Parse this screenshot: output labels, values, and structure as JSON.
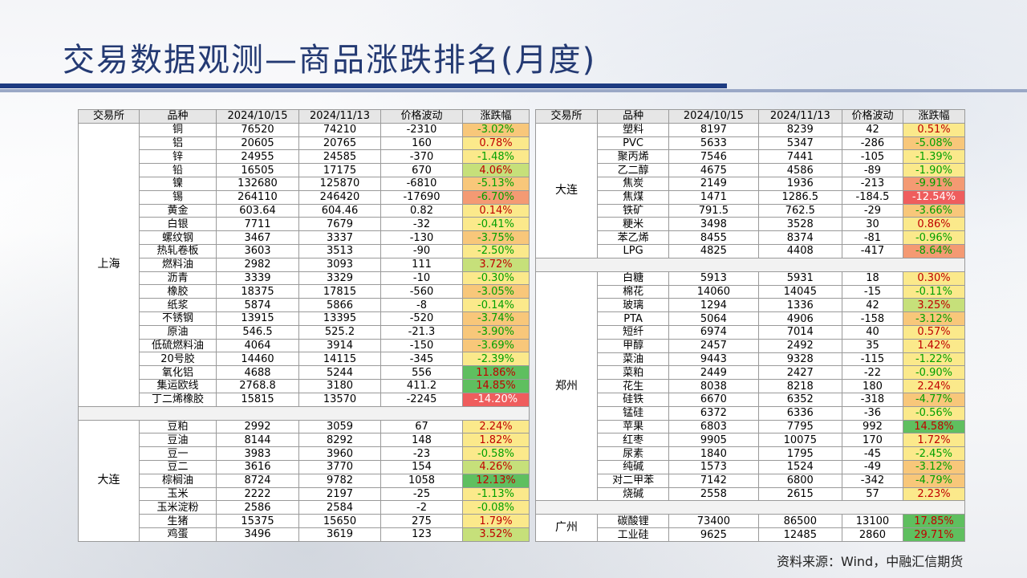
{
  "title": "交易数据观测—商品涨跌排名(月度)",
  "source": "资料来源：Wind，中融汇信期货",
  "headers": [
    "交易所",
    "品种",
    "2024/10/15",
    "2024/11/13",
    "价格波动",
    "涨跌幅"
  ],
  "left_groups": [
    {
      "exchange": "上海",
      "rows": [
        [
          "铜",
          "76520",
          "74210",
          "-2310",
          "-3.02%"
        ],
        [
          "铝",
          "20605",
          "20765",
          "160",
          "0.78%"
        ],
        [
          "锌",
          "24955",
          "24585",
          "-370",
          "-1.48%"
        ],
        [
          "铅",
          "16505",
          "17175",
          "670",
          "4.06%"
        ],
        [
          "镍",
          "132680",
          "125870",
          "-6810",
          "-5.13%"
        ],
        [
          "锡",
          "264110",
          "246420",
          "-17690",
          "-6.70%"
        ],
        [
          "黄金",
          "603.64",
          "604.46",
          "0.82",
          "0.14%"
        ],
        [
          "白银",
          "7711",
          "7679",
          "-32",
          "-0.41%"
        ],
        [
          "螺纹钢",
          "3467",
          "3337",
          "-130",
          "-3.75%"
        ],
        [
          "热轧卷板",
          "3603",
          "3513",
          "-90",
          "-2.50%"
        ],
        [
          "燃料油",
          "2982",
          "3093",
          "111",
          "3.72%"
        ],
        [
          "沥青",
          "3339",
          "3329",
          "-10",
          "-0.30%"
        ],
        [
          "橡胶",
          "18375",
          "17815",
          "-560",
          "-3.05%"
        ],
        [
          "纸浆",
          "5874",
          "5866",
          "-8",
          "-0.14%"
        ],
        [
          "不锈钢",
          "13915",
          "13395",
          "-520",
          "-3.74%"
        ],
        [
          "原油",
          "546.5",
          "525.2",
          "-21.3",
          "-3.90%"
        ],
        [
          "低硫燃料油",
          "4064",
          "3914",
          "-150",
          "-3.69%"
        ],
        [
          "20号胶",
          "14460",
          "14115",
          "-345",
          "-2.39%"
        ],
        [
          "氧化铝",
          "4688",
          "5244",
          "556",
          "11.86%"
        ],
        [
          "集运欧线",
          "2768.8",
          "3180",
          "411.2",
          "14.85%"
        ],
        [
          "丁二烯橡胶",
          "15815",
          "13570",
          "-2245",
          "-14.20%"
        ]
      ]
    },
    {
      "exchange": "大连",
      "rows": [
        [
          "豆粕",
          "2992",
          "3059",
          "67",
          "2.24%"
        ],
        [
          "豆油",
          "8144",
          "8292",
          "148",
          "1.82%"
        ],
        [
          "豆一",
          "3983",
          "3960",
          "-23",
          "-0.58%"
        ],
        [
          "豆二",
          "3616",
          "3770",
          "154",
          "4.26%"
        ],
        [
          "棕榈油",
          "8724",
          "9782",
          "1058",
          "12.13%"
        ],
        [
          "玉米",
          "2222",
          "2197",
          "-25",
          "-1.13%"
        ],
        [
          "玉米淀粉",
          "2586",
          "2584",
          "-2",
          "-0.08%"
        ],
        [
          "生猪",
          "15375",
          "15650",
          "275",
          "1.79%"
        ],
        [
          "鸡蛋",
          "3496",
          "3619",
          "123",
          "3.52%"
        ]
      ]
    }
  ],
  "right_groups": [
    {
      "exchange": "大连",
      "rows": [
        [
          "塑料",
          "8197",
          "8239",
          "42",
          "0.51%"
        ],
        [
          "PVC",
          "5633",
          "5347",
          "-286",
          "-5.08%"
        ],
        [
          "聚丙烯",
          "7546",
          "7441",
          "-105",
          "-1.39%"
        ],
        [
          "乙二醇",
          "4675",
          "4586",
          "-89",
          "-1.90%"
        ],
        [
          "焦炭",
          "2149",
          "1936",
          "-213",
          "-9.91%"
        ],
        [
          "焦煤",
          "1471",
          "1286.5",
          "-184.5",
          "-12.54%"
        ],
        [
          "铁矿",
          "791.5",
          "762.5",
          "-29",
          "-3.66%"
        ],
        [
          "粳米",
          "3498",
          "3528",
          "30",
          "0.86%"
        ],
        [
          "苯乙烯",
          "8455",
          "8374",
          "-81",
          "-0.96%"
        ],
        [
          "LPG",
          "4825",
          "4408",
          "-417",
          "-8.64%"
        ]
      ]
    },
    {
      "exchange": "郑州",
      "rows": [
        [
          "白糖",
          "5913",
          "5931",
          "18",
          "0.30%"
        ],
        [
          "棉花",
          "14060",
          "14045",
          "-15",
          "-0.11%"
        ],
        [
          "玻璃",
          "1294",
          "1336",
          "42",
          "3.25%"
        ],
        [
          "PTA",
          "5064",
          "4906",
          "-158",
          "-3.12%"
        ],
        [
          "短纤",
          "6974",
          "7014",
          "40",
          "0.57%"
        ],
        [
          "甲醇",
          "2457",
          "2492",
          "35",
          "1.42%"
        ],
        [
          "菜油",
          "9443",
          "9328",
          "-115",
          "-1.22%"
        ],
        [
          "菜粕",
          "2449",
          "2427",
          "-22",
          "-0.90%"
        ],
        [
          "花生",
          "8038",
          "8218",
          "180",
          "2.24%"
        ],
        [
          "硅铁",
          "6670",
          "6352",
          "-318",
          "-4.77%"
        ],
        [
          "锰硅",
          "6372",
          "6336",
          "-36",
          "-0.56%"
        ],
        [
          "苹果",
          "6803",
          "7795",
          "992",
          "14.58%"
        ],
        [
          "红枣",
          "9905",
          "10075",
          "170",
          "1.72%"
        ],
        [
          "尿素",
          "1840",
          "1795",
          "-45",
          "-2.45%"
        ],
        [
          "纯碱",
          "1573",
          "1524",
          "-49",
          "-3.12%"
        ],
        [
          "对二甲苯",
          "7142",
          "6800",
          "-342",
          "-4.79%"
        ],
        [
          "烧碱",
          "2558",
          "2615",
          "57",
          "2.23%"
        ]
      ]
    },
    {
      "exchange": "广州",
      "rows": [
        [
          "碳酸锂",
          "73400",
          "86500",
          "13100",
          "17.85%"
        ],
        [
          "工业硅",
          "9625",
          "12485",
          "2860",
          "29.71%"
        ]
      ]
    }
  ]
}
